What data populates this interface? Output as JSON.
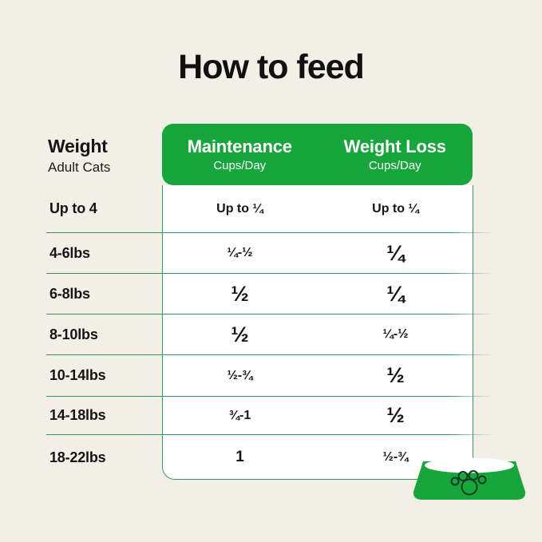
{
  "title": "How to feed",
  "weight_header": {
    "label": "Weight",
    "sub": "Adult Cats"
  },
  "columns": [
    {
      "label": "Maintenance",
      "sub": "Cups/Day"
    },
    {
      "label": "Weight Loss",
      "sub": "Cups/Day"
    }
  ],
  "rows": [
    {
      "weight": "Up to 4",
      "maintenance": "Up to ¼",
      "weight_loss": "Up to ¼"
    },
    {
      "weight": "4-6lbs",
      "maintenance": "¼-½",
      "weight_loss": "¼"
    },
    {
      "weight": "6-8lbs",
      "maintenance": "½",
      "weight_loss": "¼"
    },
    {
      "weight": "8-10lbs",
      "maintenance": "½",
      "weight_loss": "¼-½"
    },
    {
      "weight": "10-14lbs",
      "maintenance": "½-¾",
      "weight_loss": "½"
    },
    {
      "weight": "14-18lbs",
      "maintenance": "¾-1",
      "weight_loss": "½"
    },
    {
      "weight": "18-22lbs",
      "maintenance": "1",
      "weight_loss": "½-¾"
    }
  ],
  "icons": {
    "bowl": "cat-food-bowl-with-paw"
  },
  "colors": {
    "green": "#17A63C",
    "line_green": "#37945B",
    "cream_background": "#F2EFE7",
    "text": "#151515",
    "card_white": "#FFFFFF"
  }
}
